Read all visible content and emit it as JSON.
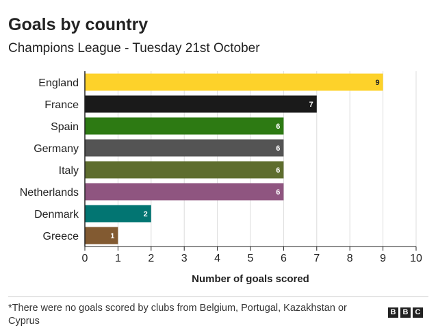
{
  "header": {
    "title": "Goals by country",
    "subtitle": "Champions League - Tuesday 21st October"
  },
  "footer": {
    "note": "*There were no goals scored by clubs from Belgium, Portugal, Kazakhstan or Cyprus",
    "logo_letters": [
      "B",
      "B",
      "C"
    ]
  },
  "chart_data": {
    "type": "bar",
    "orientation": "horizontal",
    "title": "Goals by country",
    "subtitle": "Champions League - Tuesday 21st October",
    "xlabel": "Number of goals scored",
    "ylabel": "",
    "categories": [
      "England",
      "France",
      "Spain",
      "Germany",
      "Italy",
      "Netherlands",
      "Denmark",
      "Greece"
    ],
    "values": [
      9,
      7,
      6,
      6,
      6,
      6,
      2,
      1
    ],
    "colors": [
      "#fdd22a",
      "#1a1a1a",
      "#2d7a13",
      "#545454",
      "#5e6d2e",
      "#8f5580",
      "#027572",
      "#825a31"
    ],
    "label_colors": [
      "#222222",
      "#ffffff",
      "#ffffff",
      "#ffffff",
      "#ffffff",
      "#ffffff",
      "#ffffff",
      "#ffffff"
    ],
    "xlim": [
      0,
      10
    ],
    "xticks": [
      0,
      1,
      2,
      3,
      4,
      5,
      6,
      7,
      8,
      9,
      10
    ],
    "grid": true,
    "data_labels": true,
    "legend": "none"
  }
}
